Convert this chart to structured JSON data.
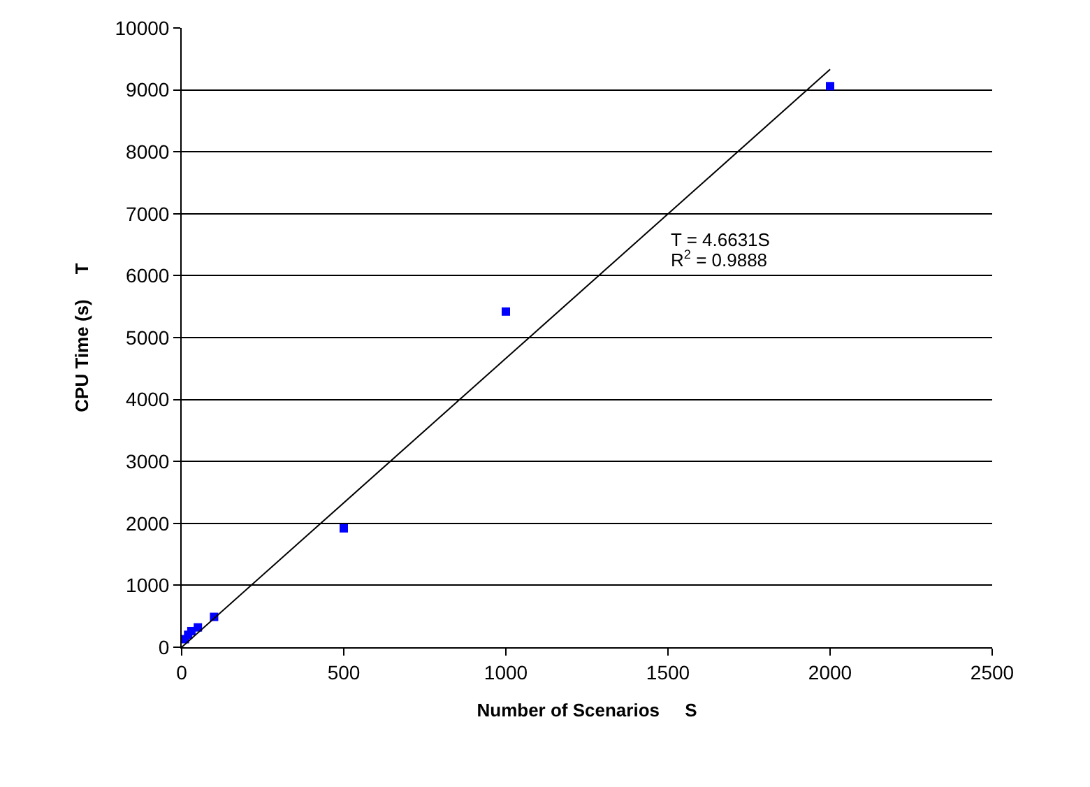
{
  "chart_data": {
    "type": "scatter",
    "xlabel": "Number of Scenarios     S",
    "ylabel": "CPU Time (s)     T",
    "xlim": [
      0,
      2500
    ],
    "xticks": [
      0,
      500,
      1000,
      1500,
      2000,
      2500
    ],
    "ylim": [
      0,
      10000
    ],
    "yticks": [
      0,
      1000,
      2000,
      3000,
      4000,
      5000,
      6000,
      7000,
      8000,
      9000,
      10000
    ],
    "grid": "y",
    "legend": false,
    "series": [
      {
        "color": "#0000ff",
        "marker": "square",
        "x": [
          10,
          20,
          30,
          50,
          100,
          500,
          1000,
          2000
        ],
        "values": [
          130,
          200,
          260,
          320,
          490,
          1920,
          5420,
          9060
        ]
      },
      {
        "type": "line",
        "color": "#000000",
        "marker": "none",
        "line_style": "solid",
        "x": [
          0,
          2000
        ],
        "values": [
          0,
          9330
        ]
      }
    ],
    "annotations": [
      "T = 4.6631S",
      "R$^{2}$ = 0.9888"
    ]
  }
}
